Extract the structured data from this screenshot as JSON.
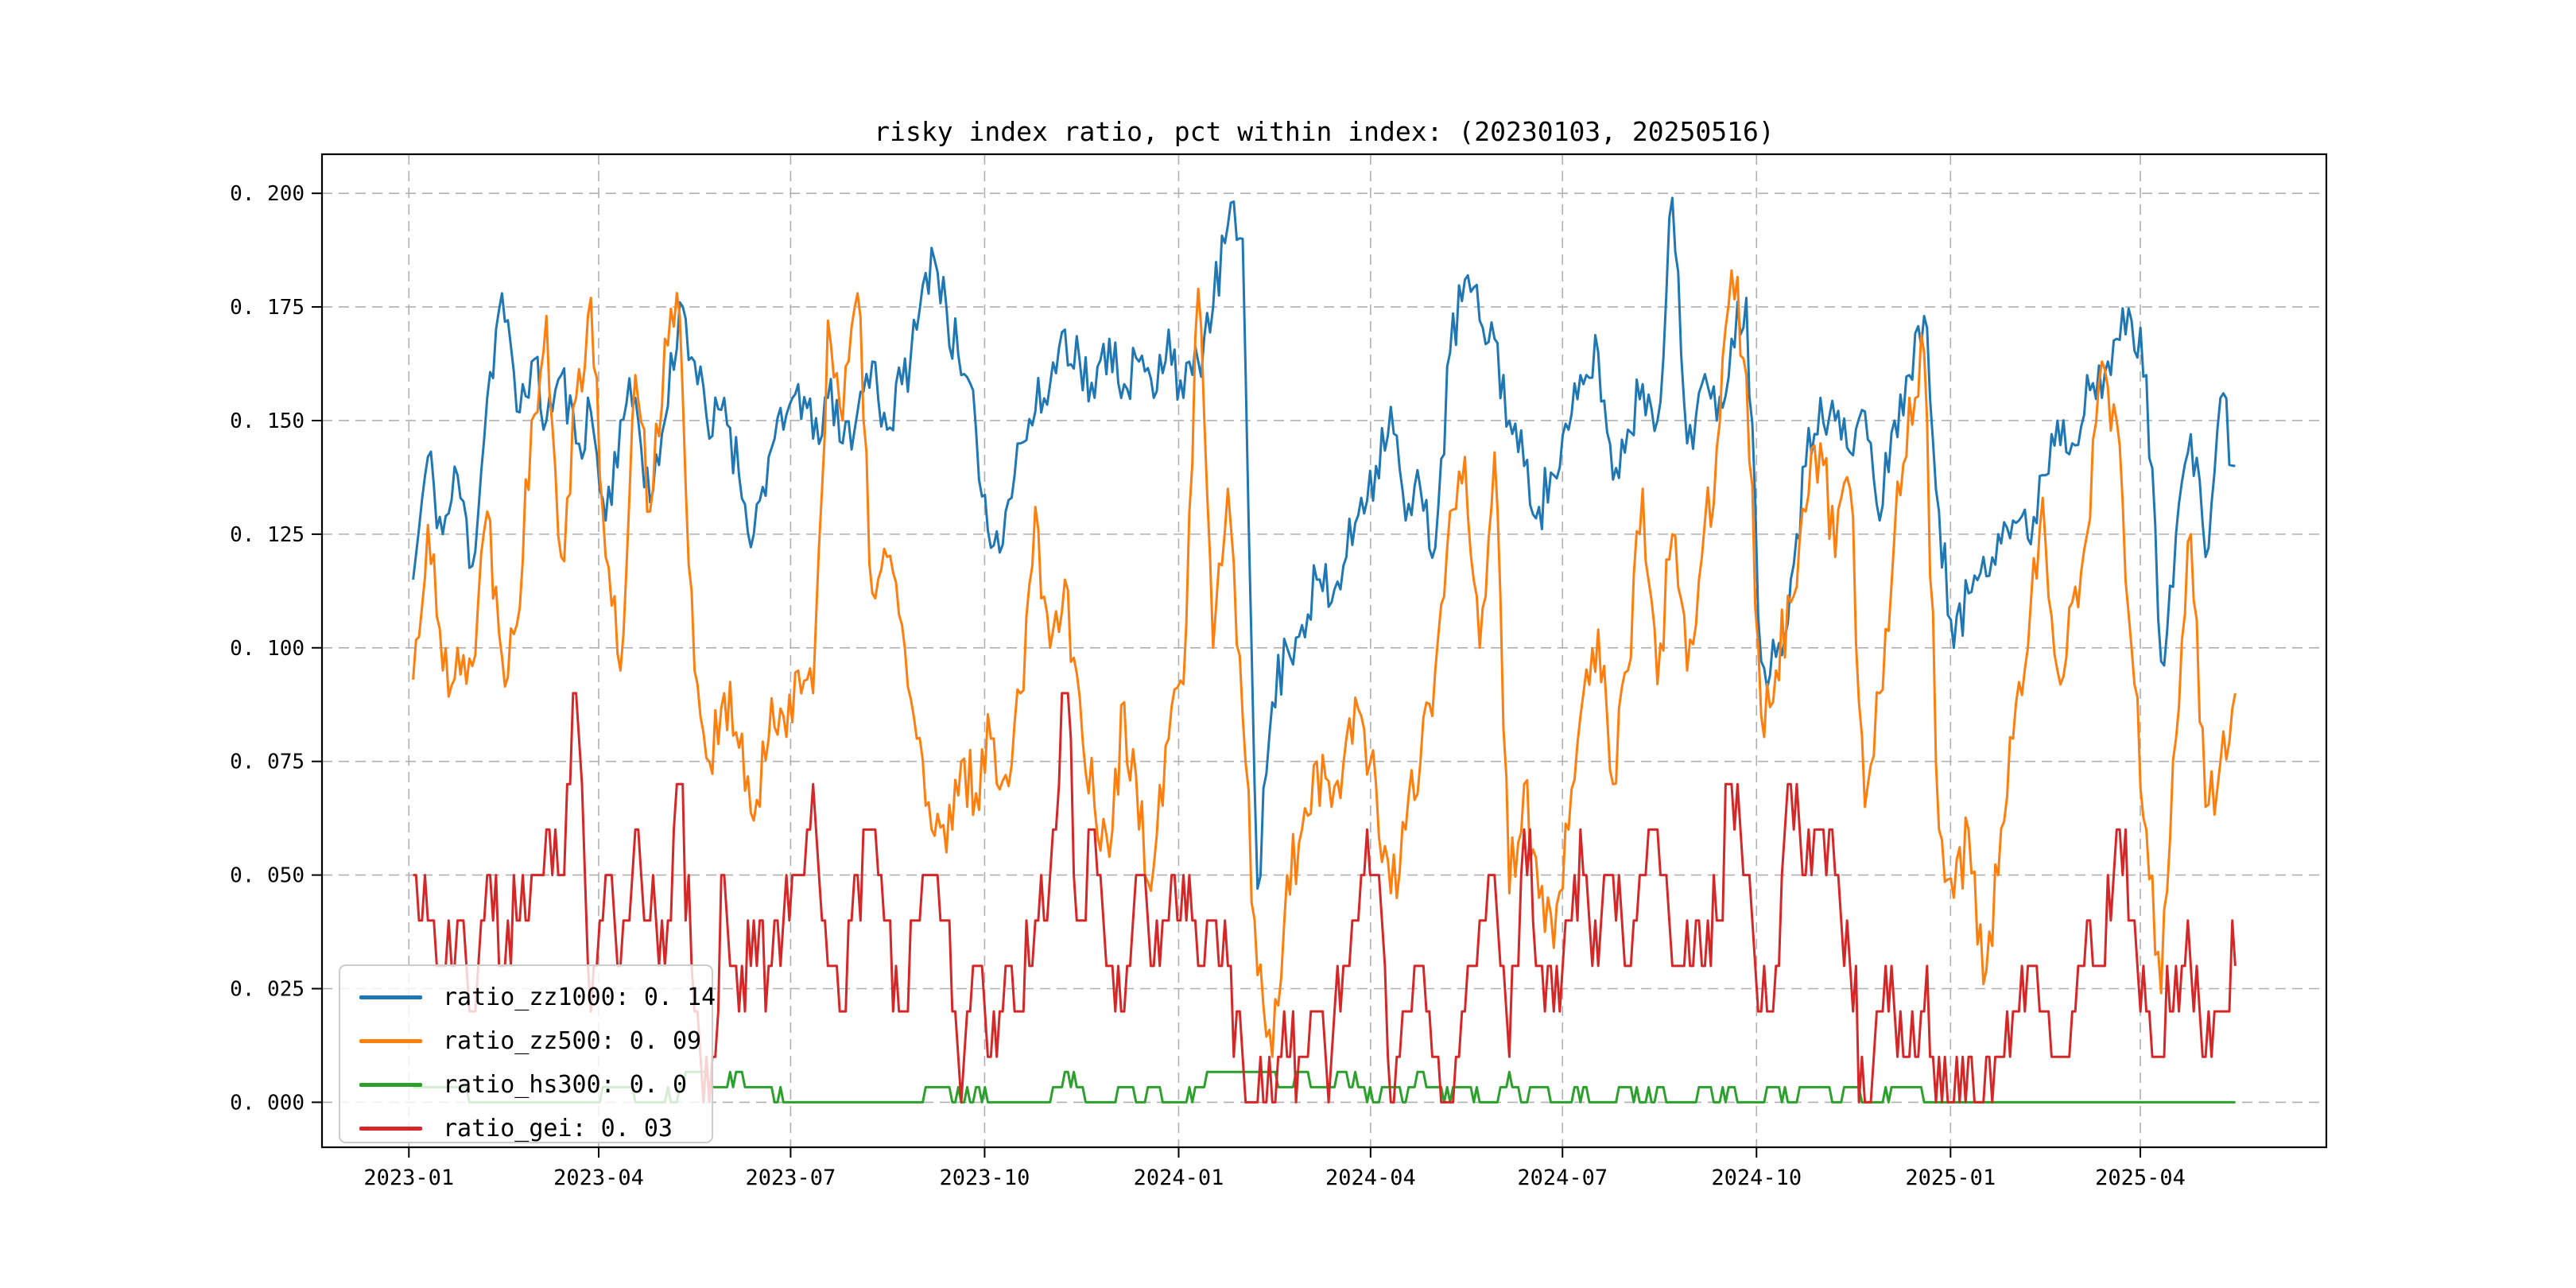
{
  "figure": {
    "background": "#ffffff"
  },
  "chart_data": {
    "type": "line",
    "title": "risky index ratio, pct within index: (20230103, 20250516)",
    "xlabel": "",
    "ylabel": "",
    "x_start": "2023-01-03",
    "x_end": "2025-05-16",
    "ylim": [
      -0.0099,
      0.2086
    ],
    "grid": {
      "on": true,
      "linestyle": "dashed",
      "color": "#b0b0b0"
    },
    "axes_color": "#000000",
    "x_ticks": [
      {
        "label": "2023-01",
        "date": "2023-01-01"
      },
      {
        "label": "2023-04",
        "date": "2023-04-01"
      },
      {
        "label": "2023-07",
        "date": "2023-07-01"
      },
      {
        "label": "2023-10",
        "date": "2023-10-01"
      },
      {
        "label": "2024-01",
        "date": "2024-01-01"
      },
      {
        "label": "2024-04",
        "date": "2024-04-01"
      },
      {
        "label": "2024-07",
        "date": "2024-07-01"
      },
      {
        "label": "2024-10",
        "date": "2024-10-01"
      },
      {
        "label": "2025-01",
        "date": "2025-01-01"
      },
      {
        "label": "2025-04",
        "date": "2025-04-01"
      }
    ],
    "y_ticks": [
      {
        "label": "0. 000",
        "value": 0.0
      },
      {
        "label": "0. 025",
        "value": 0.025
      },
      {
        "label": "0. 050",
        "value": 0.05
      },
      {
        "label": "0. 075",
        "value": 0.075
      },
      {
        "label": "0. 100",
        "value": 0.1
      },
      {
        "label": "0. 125",
        "value": 0.125
      },
      {
        "label": "0. 150",
        "value": 0.15
      },
      {
        "label": "0. 175",
        "value": 0.175
      },
      {
        "label": "0. 200",
        "value": 0.2
      }
    ],
    "legend": {
      "position": "lower left",
      "entries": [
        {
          "label": "ratio_zz1000: 0. 14",
          "color": "#1f77b4"
        },
        {
          "label": "ratio_zz500: 0. 09",
          "color": "#ff7f0e"
        },
        {
          "label": "ratio_hs300: 0. 0",
          "color": "#2ca02c"
        },
        {
          "label": "ratio_gei: 0. 03",
          "color": "#d62728"
        }
      ]
    },
    "series": [
      {
        "name": "ratio_zz1000",
        "color": "#1f77b4",
        "last_value": 0.14,
        "sampling": "weekly",
        "jitter": 0.0065,
        "quantum": null,
        "values": [
          0.115,
          0.142,
          0.125,
          0.138,
          0.118,
          0.155,
          0.178,
          0.152,
          0.163,
          0.15,
          0.16,
          0.145,
          0.152,
          0.128,
          0.15,
          0.155,
          0.132,
          0.15,
          0.176,
          0.163,
          0.146,
          0.155,
          0.138,
          0.125,
          0.142,
          0.148,
          0.158,
          0.146,
          0.155,
          0.145,
          0.152,
          0.163,
          0.148,
          0.158,
          0.17,
          0.188,
          0.175,
          0.16,
          0.148,
          0.122,
          0.13,
          0.145,
          0.152,
          0.158,
          0.17,
          0.163,
          0.155,
          0.168,
          0.158,
          0.163,
          0.155,
          0.17,
          0.155,
          0.163,
          0.175,
          0.193,
          0.19,
          0.047,
          0.088,
          0.1,
          0.105,
          0.115,
          0.11,
          0.12,
          0.133,
          0.14,
          0.153,
          0.128,
          0.135,
          0.122,
          0.165,
          0.181,
          0.172,
          0.168,
          0.15,
          0.14,
          0.131,
          0.138,
          0.148,
          0.158,
          0.165,
          0.137,
          0.148,
          0.158,
          0.15,
          0.199,
          0.145,
          0.158,
          0.15,
          0.168,
          0.177,
          0.097,
          0.098,
          0.115,
          0.14,
          0.155,
          0.15,
          0.143,
          0.152,
          0.128,
          0.15,
          0.16,
          0.173,
          0.13,
          0.1,
          0.112,
          0.12,
          0.125,
          0.128,
          0.124,
          0.138,
          0.15,
          0.145,
          0.16,
          0.155,
          0.168,
          0.172,
          0.16,
          0.097,
          0.125,
          0.147,
          0.12,
          0.155,
          0.14
        ]
      },
      {
        "name": "ratio_zz500",
        "color": "#ff7f0e",
        "last_value": 0.09,
        "sampling": "weekly",
        "jitter": 0.008,
        "quantum": null,
        "values": [
          0.093,
          0.127,
          0.095,
          0.1,
          0.096,
          0.13,
          0.098,
          0.105,
          0.15,
          0.173,
          0.12,
          0.155,
          0.177,
          0.12,
          0.095,
          0.16,
          0.13,
          0.168,
          0.173,
          0.095,
          0.075,
          0.09,
          0.078,
          0.062,
          0.08,
          0.085,
          0.095,
          0.09,
          0.172,
          0.15,
          0.178,
          0.112,
          0.12,
          0.105,
          0.08,
          0.06,
          0.055,
          0.075,
          0.068,
          0.08,
          0.072,
          0.09,
          0.131,
          0.1,
          0.115,
          0.089,
          0.065,
          0.054,
          0.088,
          0.06,
          0.052,
          0.08,
          0.092,
          0.179,
          0.1,
          0.135,
          0.085,
          0.028,
          0.01,
          0.05,
          0.06,
          0.075,
          0.065,
          0.08,
          0.085,
          0.07,
          0.046,
          0.06,
          0.075,
          0.095,
          0.13,
          0.142,
          0.1,
          0.143,
          0.046,
          0.07,
          0.045,
          0.034,
          0.06,
          0.09,
          0.104,
          0.07,
          0.095,
          0.135,
          0.092,
          0.125,
          0.095,
          0.12,
          0.144,
          0.183,
          0.16,
          0.085,
          0.095,
          0.11,
          0.13,
          0.145,
          0.12,
          0.135,
          0.065,
          0.09,
          0.125,
          0.155,
          0.165,
          0.06,
          0.045,
          0.06,
          0.026,
          0.05,
          0.08,
          0.1,
          0.133,
          0.095,
          0.11,
          0.125,
          0.163,
          0.15,
          0.1,
          0.06,
          0.024,
          0.08,
          0.125,
          0.065,
          0.075,
          0.09
        ]
      },
      {
        "name": "ratio_hs300",
        "color": "#2ca02c",
        "last_value": 0.0,
        "sampling": "weekly",
        "jitter": 0.0015,
        "quantum": 0.0033333,
        "values": [
          0.0033,
          0.0033,
          0.0033,
          0.0033,
          0,
          0,
          0,
          0,
          0,
          0,
          0,
          0,
          0,
          0.0033,
          0.0033,
          0,
          0,
          0,
          0.0033,
          0.0067,
          0.0033,
          0.0033,
          0.0067,
          0.0033,
          0.0033,
          0,
          0,
          0,
          0,
          0,
          0,
          0,
          0,
          0,
          0,
          0.0033,
          0.0033,
          0,
          0.0033,
          0,
          0,
          0,
          0,
          0,
          0.0067,
          0.0033,
          0,
          0,
          0.0033,
          0,
          0.0033,
          0,
          0,
          0.0033,
          0.0067,
          0.0067,
          0.0067,
          0.0067,
          0.0067,
          0.0033,
          0.0067,
          0.0033,
          0.0033,
          0.0067,
          0.0033,
          0,
          0.0033,
          0,
          0.0067,
          0.0033,
          0,
          0.0033,
          0,
          0,
          0.0067,
          0,
          0.0033,
          0,
          0,
          0.0033,
          0,
          0,
          0.0033,
          0,
          0.0033,
          0,
          0,
          0.0033,
          0,
          0.0033,
          0,
          0,
          0.0033,
          0,
          0.0033,
          0.0033,
          0,
          0.0033,
          0,
          0,
          0.0033,
          0.0033,
          0,
          0,
          0,
          0,
          0,
          0,
          0,
          0,
          0,
          0,
          0,
          0,
          0,
          0,
          0,
          0,
          0,
          0,
          0,
          0,
          0,
          0
        ]
      },
      {
        "name": "ratio_gei",
        "color": "#d62728",
        "last_value": 0.03,
        "sampling": "weekly",
        "jitter": 0.009,
        "quantum": 0.01,
        "values": [
          0.05,
          0.04,
          0.03,
          0.04,
          0.02,
          0.05,
          0.03,
          0.04,
          0.05,
          0.06,
          0.05,
          0.09,
          0.02,
          0.05,
          0.03,
          0.06,
          0.04,
          0.03,
          0.07,
          0.02,
          0.0,
          0.05,
          0.02,
          0.04,
          0.03,
          0.04,
          0.05,
          0.07,
          0.03,
          0.02,
          0.05,
          0.06,
          0.04,
          0.02,
          0.04,
          0.05,
          0.04,
          0.0,
          0.03,
          0.01,
          0.03,
          0.02,
          0.04,
          0.05,
          0.09,
          0.04,
          0.06,
          0.03,
          0.02,
          0.05,
          0.03,
          0.04,
          0.05,
          0.03,
          0.04,
          0.03,
          0.01,
          0.0,
          0.0,
          0.01,
          0.01,
          0.02,
          0.01,
          0.03,
          0.05,
          0.05,
          0.0,
          0.02,
          0.03,
          0.01,
          0.0,
          0.02,
          0.04,
          0.05,
          0.01,
          0.06,
          0.03,
          0.02,
          0.04,
          0.05,
          0.03,
          0.05,
          0.03,
          0.05,
          0.06,
          0.03,
          0.04,
          0.03,
          0.04,
          0.07,
          0.05,
          0.02,
          0.03,
          0.07,
          0.05,
          0.06,
          0.05,
          0.03,
          0.0,
          0.02,
          0.02,
          0.01,
          0.02,
          0.01,
          0.0,
          0.01,
          0.0,
          0.01,
          0.02,
          0.03,
          0.02,
          0.01,
          0.02,
          0.04,
          0.03,
          0.06,
          0.04,
          0.02,
          0.01,
          0.03,
          0.03,
          0.01,
          0.02,
          0.03
        ]
      }
    ]
  }
}
